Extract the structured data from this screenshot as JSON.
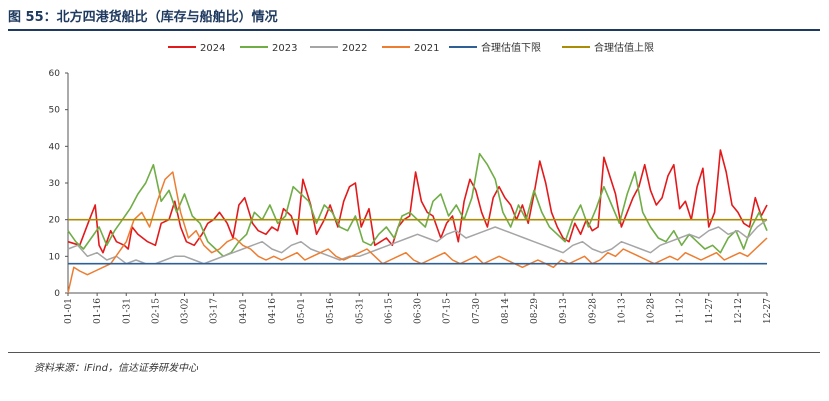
{
  "header": {
    "title": "图 55：北方四港货船比（库存与船舶比）情况"
  },
  "footer": {
    "source": "资料来源：iFind，信达证券研发中心"
  },
  "chart_data": {
    "type": "line",
    "ylim": [
      0,
      60
    ],
    "yticks": [
      0,
      10,
      20,
      30,
      40,
      50,
      60
    ],
    "xticks": [
      "01-01",
      "01-16",
      "01-31",
      "02-15",
      "03-02",
      "03-17",
      "04-01",
      "04-16",
      "05-01",
      "05-16",
      "05-31",
      "06-15",
      "06-30",
      "07-15",
      "07-30",
      "08-14",
      "08-29",
      "09-13",
      "09-28",
      "10-13",
      "10-28",
      "11-12",
      "11-27",
      "12-12",
      "12-27"
    ],
    "legend_position": "top",
    "series": [
      {
        "name": "2024",
        "color": "#e31a1c",
        "width": 1.6,
        "x": [
          0,
          6,
          11,
          14,
          16,
          18,
          22,
          25,
          29,
          31,
          33,
          36,
          41,
          45,
          48,
          52,
          55,
          58,
          61,
          65,
          69,
          72,
          75,
          78,
          82,
          85,
          88,
          91,
          95,
          98,
          102,
          105,
          108,
          111,
          115,
          118,
          121,
          125,
          128,
          132,
          135,
          139,
          142,
          145,
          148,
          151,
          155,
          158,
          161,
          164,
          167,
          170,
          173,
          176,
          179,
          182,
          185,
          188,
          192,
          195,
          198,
          201,
          204,
          207,
          210,
          213,
          216,
          219,
          222,
          225,
          228,
          231,
          234,
          237,
          240,
          243,
          246,
          249,
          252,
          255,
          258,
          261,
          264,
          267,
          270,
          273,
          276,
          279,
          282,
          285,
          288,
          291,
          294,
          297,
          300,
          303,
          306,
          309,
          312,
          315,
          318,
          321,
          324,
          327,
          330,
          333,
          336,
          339,
          342,
          345,
          348,
          351,
          354,
          357,
          360
        ],
        "y": [
          14,
          13,
          20,
          24,
          13,
          11,
          17,
          14,
          13,
          12,
          18,
          16,
          14,
          13,
          19,
          20,
          25,
          18,
          14,
          13,
          16,
          19,
          20,
          22,
          19,
          15,
          24,
          26,
          19,
          17,
          16,
          18,
          17,
          23,
          21,
          16,
          31,
          24,
          16,
          20,
          24,
          18,
          25,
          29,
          30,
          18,
          23,
          13,
          14,
          15,
          13,
          18,
          20,
          21,
          33,
          25,
          22,
          21,
          15,
          19,
          21,
          14,
          25,
          31,
          28,
          22,
          18,
          26,
          29,
          26,
          24,
          20,
          24,
          19,
          27,
          36,
          30,
          22,
          18,
          15,
          14,
          19,
          16,
          20,
          17,
          18,
          37,
          32,
          27,
          18,
          22,
          26,
          29,
          35,
          28,
          24,
          26,
          32,
          35,
          23,
          25,
          20,
          29,
          34,
          18,
          22,
          39,
          33,
          24,
          22,
          19,
          18,
          26,
          21,
          24
        ]
      },
      {
        "name": "2023",
        "color": "#70ad47",
        "width": 1.6,
        "x": [
          0,
          4,
          8,
          12,
          16,
          20,
          24,
          28,
          32,
          36,
          40,
          44,
          48,
          52,
          56,
          60,
          64,
          68,
          72,
          76,
          80,
          84,
          88,
          92,
          96,
          100,
          104,
          108,
          112,
          116,
          120,
          124,
          128,
          132,
          136,
          140,
          144,
          148,
          152,
          156,
          160,
          164,
          168,
          172,
          176,
          180,
          184,
          188,
          192,
          196,
          200,
          204,
          208,
          212,
          216,
          220,
          224,
          228,
          232,
          236,
          240,
          244,
          248,
          252,
          256,
          260,
          264,
          268,
          272,
          276,
          280,
          284,
          288,
          292,
          296,
          300,
          304,
          308,
          312,
          316,
          320,
          324,
          328,
          332,
          336,
          340,
          344,
          348,
          352,
          356,
          360
        ],
        "y": [
          17,
          14,
          12,
          15,
          18,
          13,
          17,
          20,
          23,
          27,
          30,
          35,
          25,
          28,
          22,
          27,
          21,
          19,
          14,
          12,
          10,
          11,
          14,
          16,
          22,
          20,
          24,
          19,
          21,
          29,
          27,
          25,
          19,
          24,
          22,
          18,
          17,
          21,
          14,
          13,
          16,
          18,
          15,
          21,
          22,
          20,
          18,
          25,
          27,
          21,
          24,
          20,
          26,
          38,
          35,
          31,
          22,
          18,
          24,
          20,
          28,
          22,
          18,
          16,
          14,
          20,
          24,
          18,
          23,
          29,
          24,
          19,
          27,
          33,
          22,
          18,
          15,
          14,
          17,
          13,
          16,
          14,
          12,
          13,
          11,
          15,
          17,
          12,
          18,
          22,
          17
        ]
      },
      {
        "name": "2022",
        "color": "#a5a5a5",
        "width": 1.5,
        "x": [
          0,
          5,
          10,
          15,
          20,
          25,
          30,
          35,
          40,
          45,
          50,
          55,
          60,
          65,
          70,
          75,
          80,
          85,
          90,
          95,
          100,
          105,
          110,
          115,
          120,
          125,
          130,
          135,
          140,
          145,
          150,
          155,
          160,
          165,
          170,
          175,
          180,
          185,
          190,
          195,
          200,
          205,
          210,
          215,
          220,
          225,
          230,
          235,
          240,
          245,
          250,
          255,
          260,
          265,
          270,
          275,
          280,
          285,
          290,
          295,
          300,
          305,
          310,
          315,
          320,
          325,
          330,
          335,
          340,
          345,
          350,
          355,
          360
        ],
        "y": [
          12,
          13,
          10,
          11,
          9,
          10,
          8,
          9,
          8,
          8,
          9,
          10,
          10,
          9,
          8,
          9,
          10,
          11,
          12,
          13,
          14,
          12,
          11,
          13,
          14,
          12,
          11,
          10,
          9,
          10,
          10,
          11,
          12,
          13,
          14,
          15,
          16,
          15,
          14,
          16,
          17,
          15,
          16,
          17,
          18,
          17,
          16,
          15,
          14,
          13,
          12,
          11,
          13,
          14,
          12,
          11,
          12,
          14,
          13,
          12,
          11,
          13,
          14,
          15,
          16,
          15,
          17,
          18,
          16,
          17,
          15,
          18,
          20
        ]
      },
      {
        "name": "2021",
        "color": "#ed7d31",
        "width": 1.5,
        "x": [
          0,
          3,
          6,
          10,
          14,
          18,
          22,
          26,
          30,
          34,
          38,
          42,
          46,
          50,
          54,
          58,
          62,
          66,
          70,
          74,
          78,
          82,
          86,
          90,
          94,
          98,
          102,
          106,
          110,
          114,
          118,
          122,
          126,
          130,
          134,
          138,
          142,
          146,
          150,
          154,
          158,
          162,
          166,
          170,
          174,
          178,
          182,
          186,
          190,
          194,
          198,
          202,
          206,
          210,
          214,
          218,
          222,
          226,
          230,
          234,
          238,
          242,
          246,
          250,
          254,
          258,
          262,
          266,
          270,
          274,
          278,
          282,
          286,
          290,
          294,
          298,
          302,
          306,
          310,
          314,
          318,
          322,
          326,
          330,
          334,
          338,
          342,
          346,
          350,
          354,
          358,
          360
        ],
        "y": [
          0,
          7,
          6,
          5,
          6,
          7,
          8,
          11,
          14,
          20,
          22,
          18,
          25,
          31,
          33,
          22,
          15,
          17,
          13,
          11,
          12,
          14,
          15,
          13,
          12,
          10,
          9,
          10,
          9,
          10,
          11,
          9,
          10,
          11,
          12,
          10,
          9,
          10,
          11,
          12,
          10,
          8,
          9,
          10,
          11,
          9,
          8,
          9,
          10,
          11,
          9,
          8,
          9,
          10,
          8,
          9,
          10,
          9,
          8,
          7,
          8,
          9,
          8,
          7,
          9,
          8,
          9,
          10,
          8,
          9,
          11,
          10,
          12,
          11,
          10,
          9,
          8,
          9,
          10,
          9,
          11,
          10,
          9,
          10,
          11,
          9,
          10,
          11,
          10,
          12,
          14,
          15
        ]
      },
      {
        "name": "合理估值下限",
        "color": "#2e5f95",
        "width": 1.6,
        "x": [
          0,
          360
        ],
        "y": [
          8,
          8
        ]
      },
      {
        "name": "合理估值上限",
        "color": "#a98e05",
        "width": 1.6,
        "x": [
          0,
          360
        ],
        "y": [
          20,
          20
        ]
      }
    ]
  }
}
